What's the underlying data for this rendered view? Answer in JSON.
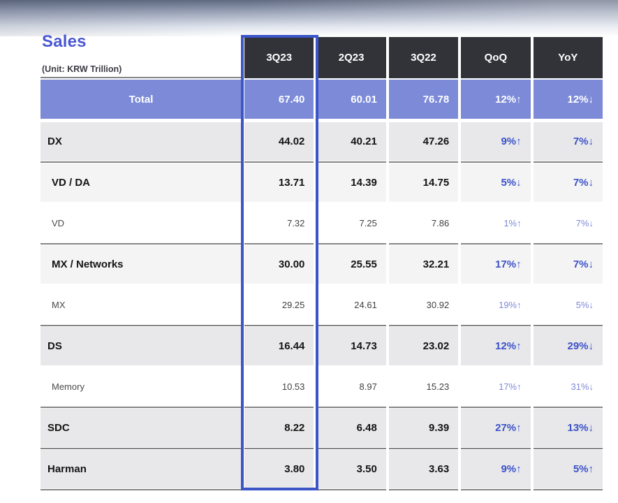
{
  "header": {
    "title": "Sales",
    "unit": "(Unit: KRW Trillion)"
  },
  "table": {
    "columns": [
      "3Q23",
      "2Q23",
      "3Q22",
      "QoQ",
      "YoY"
    ],
    "highlighted_column": "3Q23",
    "rows": [
      {
        "label": "Total",
        "level": "total",
        "sep_above": "none",
        "values": [
          "67.40",
          "60.01",
          "76.78"
        ],
        "qoq": "12%↑",
        "yoy": "12%↓"
      },
      {
        "label": "DX",
        "level": "section",
        "sep_above": "gap5",
        "values": [
          "44.02",
          "40.21",
          "47.26"
        ],
        "qoq": "9%↑",
        "yoy": "7%↓"
      },
      {
        "label": "VD / DA",
        "level": "subsection",
        "sep_above": "line",
        "values": [
          "13.71",
          "14.39",
          "14.75"
        ],
        "qoq": "5%↓",
        "yoy": "7%↓"
      },
      {
        "label": "VD",
        "level": "item",
        "sep_above": "gap3",
        "values": [
          "7.32",
          "7.25",
          "7.86"
        ],
        "qoq": "1%↑",
        "yoy": "7%↓"
      },
      {
        "label": "MX / Networks",
        "level": "subsection",
        "sep_above": "line",
        "values": [
          "30.00",
          "25.55",
          "32.21"
        ],
        "qoq": "17%↑",
        "yoy": "7%↓"
      },
      {
        "label": "MX",
        "level": "item",
        "sep_above": "gap3",
        "values": [
          "29.25",
          "24.61",
          "30.92"
        ],
        "qoq": "19%↑",
        "yoy": "5%↓"
      },
      {
        "label": "DS",
        "level": "section",
        "sep_above": "line",
        "values": [
          "16.44",
          "14.73",
          "23.02"
        ],
        "qoq": "12%↑",
        "yoy": "29%↓"
      },
      {
        "label": "Memory",
        "level": "item",
        "sep_above": "gap3",
        "values": [
          "10.53",
          "8.97",
          "15.23"
        ],
        "qoq": "17%↑",
        "yoy": "31%↓"
      },
      {
        "label": "SDC",
        "level": "section",
        "sep_above": "line",
        "values": [
          "8.22",
          "6.48",
          "9.39"
        ],
        "qoq": "27%↑",
        "yoy": "13%↓"
      },
      {
        "label": "Harman",
        "level": "section",
        "sep_above": "line",
        "values": [
          "3.80",
          "3.50",
          "3.63"
        ],
        "qoq": "9%↑",
        "yoy": "5%↑"
      }
    ]
  },
  "colors": {
    "title_blue": "#4a58d2",
    "header_bg": "#313339",
    "total_row_bg": "#7c8ad8",
    "highlight_border": "#3c55c7",
    "percent_strong": "#3b51c9",
    "percent_light": "#7d89d8",
    "separator_line": "#858585",
    "section_row_bg": "#e8e8ea",
    "subsection_row_bg": "#f4f4f5"
  }
}
